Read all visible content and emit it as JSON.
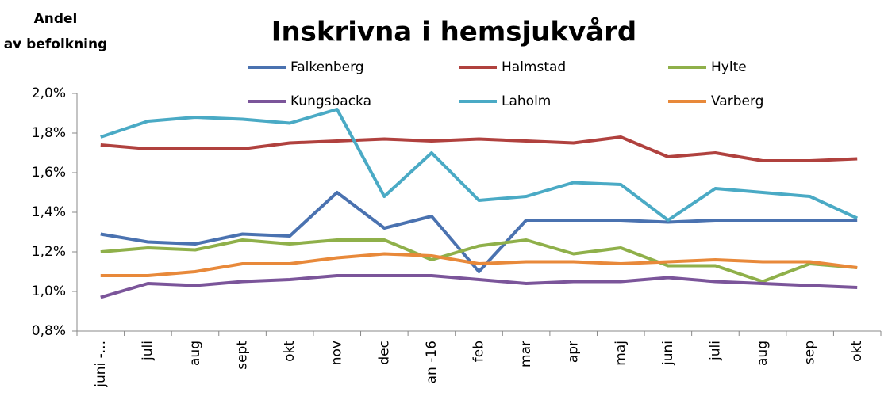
{
  "chart_data": {
    "type": "line",
    "title": "Inskrivna i hemsjukvård",
    "y_label": [
      "Andel",
      "av befolkning"
    ],
    "categories": [
      "juni -...",
      "juli",
      "aug",
      "sept",
      "okt",
      "nov",
      "dec",
      "an -16",
      "feb",
      "mar",
      "apr",
      "maj",
      "juni",
      "juli",
      "aug",
      "sep",
      "okt"
    ],
    "ylim": [
      0.8,
      2.0
    ],
    "yticks": [
      {
        "value": 0.8,
        "label": "0,8%"
      },
      {
        "value": 1.0,
        "label": "1,0%"
      },
      {
        "value": 1.2,
        "label": "1,2%"
      },
      {
        "value": 1.4,
        "label": "1,4%"
      },
      {
        "value": 1.6,
        "label": "1,6%"
      },
      {
        "value": 1.8,
        "label": "1,8%"
      },
      {
        "value": 2.0,
        "label": "2,0%"
      }
    ],
    "series": [
      {
        "name": "Falkenberg",
        "color": "#4a72b0",
        "values": [
          1.29,
          1.25,
          1.24,
          1.29,
          1.28,
          1.5,
          1.32,
          1.38,
          1.1,
          1.36,
          1.36,
          1.36,
          1.35,
          1.36,
          1.36,
          1.36,
          1.36
        ]
      },
      {
        "name": "Halmstad",
        "color": "#b0413e",
        "values": [
          1.74,
          1.72,
          1.72,
          1.72,
          1.75,
          1.76,
          1.77,
          1.76,
          1.77,
          1.76,
          1.75,
          1.78,
          1.68,
          1.7,
          1.66,
          1.66,
          1.67
        ]
      },
      {
        "name": "Hylte",
        "color": "#8fb04a",
        "values": [
          1.2,
          1.22,
          1.21,
          1.26,
          1.24,
          1.26,
          1.26,
          1.16,
          1.23,
          1.26,
          1.19,
          1.22,
          1.13,
          1.13,
          1.05,
          1.14,
          1.12
        ]
      },
      {
        "name": "Kungsbacka",
        "color": "#7b559a",
        "values": [
          0.97,
          1.04,
          1.03,
          1.05,
          1.06,
          1.08,
          1.08,
          1.08,
          1.06,
          1.04,
          1.05,
          1.05,
          1.07,
          1.05,
          1.04,
          1.03,
          1.02
        ]
      },
      {
        "name": "Laholm",
        "color": "#4aaac5",
        "values": [
          1.78,
          1.86,
          1.88,
          1.87,
          1.85,
          1.92,
          1.48,
          1.7,
          1.46,
          1.48,
          1.55,
          1.54,
          1.36,
          1.52,
          1.5,
          1.48,
          1.37
        ]
      },
      {
        "name": "Varberg",
        "color": "#e8893a",
        "values": [
          1.08,
          1.08,
          1.1,
          1.14,
          1.14,
          1.17,
          1.19,
          1.18,
          1.14,
          1.15,
          1.15,
          1.14,
          1.15,
          1.16,
          1.15,
          1.15,
          1.12
        ]
      }
    ]
  }
}
